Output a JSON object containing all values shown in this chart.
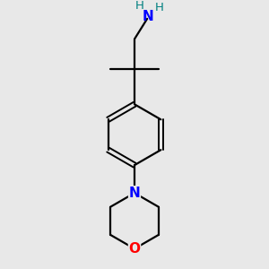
{
  "background_color": "#e8e8e8",
  "bond_color": "#000000",
  "N_color": "#0000ff",
  "O_color": "#ff0000",
  "H_color": "#008080",
  "figsize": [
    3.0,
    3.0
  ],
  "dpi": 100,
  "xlim": [
    -1.5,
    1.5
  ],
  "ylim": [
    -2.1,
    1.9
  ]
}
